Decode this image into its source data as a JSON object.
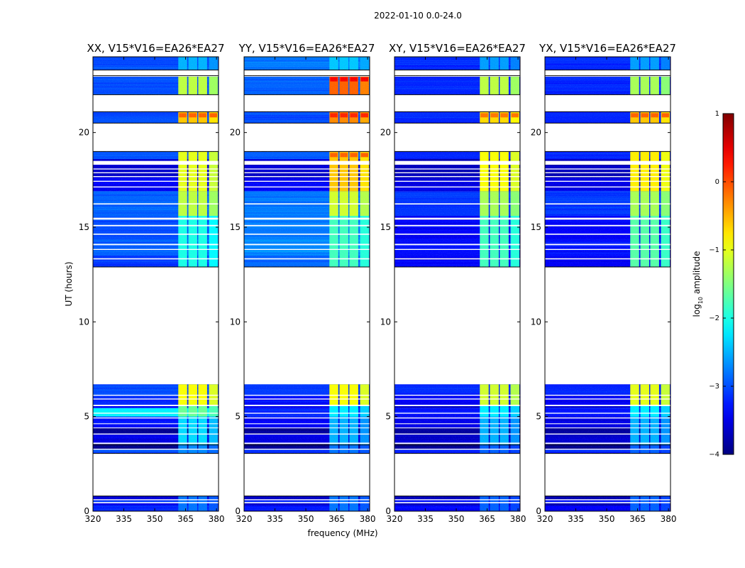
{
  "chart_data": {
    "type": "heatmap",
    "suptitle": "2022-01-10 0.0-24.0",
    "xlabel": "frequency (MHz)",
    "ylabel": "UT (hours)",
    "xlim": [
      320,
      381
    ],
    "ylim": [
      0,
      24
    ],
    "xticks": [
      320,
      335,
      350,
      365,
      380
    ],
    "yticks": [
      0,
      5,
      10,
      15,
      20
    ],
    "colormap": "jet",
    "colorbar": {
      "label_main": "log",
      "label_sub": "10",
      "label_rest": " amplitude",
      "range": [
        -4,
        1
      ],
      "ticks": [
        -4,
        -3,
        -2,
        -1,
        0,
        1
      ],
      "tick_labels": [
        "−4",
        "−3",
        "−2",
        "−1",
        "0",
        "1"
      ]
    },
    "freq_channels_mhz": [
      363.6,
      368.5,
      373.3,
      378.5
    ],
    "time_blocks": [
      [
        0.0,
        0.8
      ],
      [
        3.05,
        3.5
      ],
      [
        3.5,
        5.3
      ],
      [
        5.0,
        5.6
      ],
      [
        5.6,
        6.7
      ],
      [
        12.9,
        15.6
      ],
      [
        15.6,
        16.9
      ],
      [
        16.9,
        19.0
      ],
      [
        20.5,
        21.1
      ],
      [
        22.0,
        23.0
      ],
      [
        23.3,
        24.0
      ]
    ],
    "panels": [
      {
        "title": "XX, V15*V16=EA26*EA27",
        "bg": [
          [
            0.0,
            0.3,
            -3.2
          ],
          [
            0.3,
            0.45,
            -3.5
          ],
          [
            0.45,
            0.6,
            -3.1
          ],
          [
            0.6,
            0.8,
            -3.6
          ],
          [
            3.05,
            3.3,
            -3.0
          ],
          [
            3.3,
            3.55,
            -3.9
          ],
          [
            3.55,
            4.1,
            -3.5
          ],
          [
            4.1,
            4.4,
            -3.9
          ],
          [
            4.4,
            5.0,
            -3.3
          ],
          [
            5.0,
            5.45,
            -2.2
          ],
          [
            5.45,
            5.6,
            -3.4
          ],
          [
            5.6,
            6.1,
            -3.2
          ],
          [
            6.1,
            6.7,
            -3.0
          ],
          [
            12.9,
            13.5,
            -3.1
          ],
          [
            13.5,
            14.4,
            -2.9
          ],
          [
            14.4,
            15.6,
            -3.0
          ],
          [
            15.6,
            16.9,
            -2.9
          ],
          [
            16.9,
            17.6,
            -3.4
          ],
          [
            17.6,
            18.6,
            -3.6
          ],
          [
            18.6,
            19.0,
            -3.0
          ],
          [
            20.5,
            21.1,
            -3.0
          ],
          [
            22.0,
            23.0,
            -3.0
          ],
          [
            23.3,
            24.0,
            -3.0
          ]
        ],
        "hot": [
          [
            0.0,
            0.8,
            -2.8
          ],
          [
            3.05,
            3.5,
            -2.7
          ],
          [
            3.5,
            5.3,
            -2.3
          ],
          [
            5.0,
            5.6,
            -1.6
          ],
          [
            5.6,
            6.7,
            -0.9
          ],
          [
            12.9,
            15.6,
            -2.0
          ],
          [
            15.6,
            16.9,
            -1.2
          ],
          [
            16.9,
            19.0,
            -1.0
          ],
          [
            20.5,
            21.1,
            -0.6
          ],
          [
            22.0,
            23.0,
            -1.2
          ],
          [
            23.3,
            24.0,
            -2.5
          ]
        ]
      },
      {
        "title": "YY, V15*V16=EA26*EA27",
        "bg": [
          [
            0.0,
            0.3,
            -3.3
          ],
          [
            0.3,
            0.45,
            -3.6
          ],
          [
            0.45,
            0.6,
            -3.2
          ],
          [
            0.6,
            0.8,
            -3.6
          ],
          [
            3.05,
            3.3,
            -3.1
          ],
          [
            3.3,
            3.55,
            -3.9
          ],
          [
            3.55,
            4.1,
            -3.5
          ],
          [
            4.1,
            4.4,
            -3.9
          ],
          [
            4.4,
            5.0,
            -3.4
          ],
          [
            5.0,
            5.45,
            -3.2
          ],
          [
            5.45,
            5.6,
            -3.5
          ],
          [
            5.6,
            6.1,
            -3.3
          ],
          [
            6.1,
            6.7,
            -3.1
          ],
          [
            12.9,
            13.5,
            -2.9
          ],
          [
            13.5,
            14.4,
            -2.7
          ],
          [
            14.4,
            15.6,
            -2.8
          ],
          [
            15.6,
            16.9,
            -2.8
          ],
          [
            16.9,
            17.6,
            -3.4
          ],
          [
            17.6,
            18.6,
            -3.6
          ],
          [
            18.6,
            19.0,
            -2.9
          ],
          [
            20.5,
            21.1,
            -3.0
          ],
          [
            22.0,
            23.0,
            -2.9
          ],
          [
            23.3,
            24.0,
            -2.8
          ]
        ],
        "hot": [
          [
            0.0,
            0.8,
            -2.8
          ],
          [
            3.05,
            3.5,
            -2.8
          ],
          [
            3.5,
            5.3,
            -2.5
          ],
          [
            5.0,
            5.6,
            -2.2
          ],
          [
            5.6,
            6.7,
            -0.9
          ],
          [
            12.9,
            15.6,
            -1.8
          ],
          [
            15.6,
            16.9,
            -1.1
          ],
          [
            16.9,
            19.0,
            -0.6
          ],
          [
            20.5,
            21.1,
            -0.3
          ],
          [
            22.0,
            23.0,
            -0.1
          ],
          [
            23.3,
            24.0,
            -2.4
          ]
        ]
      },
      {
        "title": "XY, V15*V16=EA26*EA27",
        "bg": [
          [
            0.0,
            0.3,
            -3.4
          ],
          [
            0.3,
            0.45,
            -3.7
          ],
          [
            0.45,
            0.6,
            -3.3
          ],
          [
            0.6,
            0.8,
            -3.7
          ],
          [
            3.05,
            3.3,
            -3.2
          ],
          [
            3.3,
            3.55,
            -3.9
          ],
          [
            3.55,
            4.1,
            -3.6
          ],
          [
            4.1,
            4.4,
            -3.9
          ],
          [
            4.4,
            5.0,
            -3.5
          ],
          [
            5.0,
            5.45,
            -3.3
          ],
          [
            5.45,
            5.6,
            -3.6
          ],
          [
            5.6,
            6.1,
            -3.4
          ],
          [
            6.1,
            6.7,
            -3.2
          ],
          [
            12.9,
            13.5,
            -3.4
          ],
          [
            13.5,
            14.4,
            -3.3
          ],
          [
            14.4,
            15.6,
            -3.4
          ],
          [
            15.6,
            16.9,
            -3.1
          ],
          [
            16.9,
            17.6,
            -3.5
          ],
          [
            17.6,
            18.6,
            -3.7
          ],
          [
            18.6,
            19.0,
            -3.2
          ],
          [
            20.5,
            21.1,
            -3.2
          ],
          [
            22.0,
            23.0,
            -3.2
          ],
          [
            23.3,
            24.0,
            -3.2
          ]
        ],
        "hot": [
          [
            0.0,
            0.8,
            -2.9
          ],
          [
            3.05,
            3.5,
            -2.9
          ],
          [
            3.5,
            5.3,
            -2.5
          ],
          [
            5.0,
            5.6,
            -2.2
          ],
          [
            5.6,
            6.7,
            -1.1
          ],
          [
            12.9,
            15.6,
            -1.8
          ],
          [
            15.6,
            16.9,
            -1.3
          ],
          [
            16.9,
            19.0,
            -0.9
          ],
          [
            20.5,
            21.1,
            -0.7
          ],
          [
            22.0,
            23.0,
            -1.2
          ],
          [
            23.3,
            24.0,
            -2.6
          ]
        ]
      },
      {
        "title": "YX, V15*V16=EA26*EA27",
        "bg": [
          [
            0.0,
            0.3,
            -3.4
          ],
          [
            0.3,
            0.45,
            -3.7
          ],
          [
            0.45,
            0.6,
            -3.3
          ],
          [
            0.6,
            0.8,
            -3.7
          ],
          [
            3.05,
            3.3,
            -3.2
          ],
          [
            3.3,
            3.55,
            -3.9
          ],
          [
            3.55,
            4.1,
            -3.6
          ],
          [
            4.1,
            4.4,
            -3.9
          ],
          [
            4.4,
            5.0,
            -3.5
          ],
          [
            5.0,
            5.45,
            -3.3
          ],
          [
            5.45,
            5.6,
            -3.6
          ],
          [
            5.6,
            6.1,
            -3.4
          ],
          [
            6.1,
            6.7,
            -3.2
          ],
          [
            12.9,
            13.5,
            -3.4
          ],
          [
            13.5,
            14.4,
            -3.3
          ],
          [
            14.4,
            15.6,
            -3.4
          ],
          [
            15.6,
            16.9,
            -3.1
          ],
          [
            16.9,
            17.6,
            -3.5
          ],
          [
            17.6,
            18.6,
            -3.7
          ],
          [
            18.6,
            19.0,
            -3.2
          ],
          [
            20.5,
            21.1,
            -3.2
          ],
          [
            22.0,
            23.0,
            -3.2
          ],
          [
            23.3,
            24.0,
            -3.2
          ]
        ],
        "hot": [
          [
            0.0,
            0.8,
            -2.9
          ],
          [
            3.05,
            3.5,
            -2.9
          ],
          [
            3.5,
            5.3,
            -2.5
          ],
          [
            5.0,
            5.6,
            -2.2
          ],
          [
            5.6,
            6.7,
            -1.0
          ],
          [
            12.9,
            15.6,
            -1.7
          ],
          [
            15.6,
            16.9,
            -1.3
          ],
          [
            16.9,
            19.0,
            -0.8
          ],
          [
            20.5,
            21.1,
            -0.6
          ],
          [
            22.0,
            23.0,
            -1.3
          ],
          [
            23.3,
            24.0,
            -2.6
          ]
        ]
      }
    ]
  }
}
